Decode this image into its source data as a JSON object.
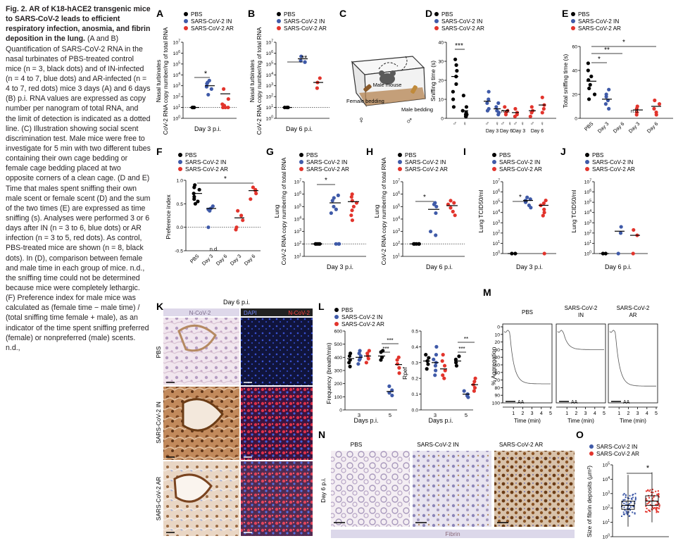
{
  "caption": {
    "title": "Fig. 2. AR of K18-hACE2 transgenic mice to SARS-CoV-2 leads to efficient respiratory infection, anosmia, and fibrin deposition in the lung.",
    "body": "(A and B) Quantification of SARS-CoV-2 RNA in the nasal turbinates of PBS-treated control mice (n = 3, black dots) and of IN-infected (n = 4 to 7, blue dots) and AR-infected (n = 4 to 7, red dots) mice 3 days (A) and 6 days (B) p.i. RNA values are expressed as copy number per nanogram of total RNA, and the limit of detection is indicated as a dotted line. (C) Illustration showing social scent discrimination test. Male mice were free to investigate for 5 min with two different tubes containing their own cage bedding or female cage bedding placed at two opposite corners of a clean cage. (D and E) Time that males spent sniffing their own male scent or female scent (D) and the sum of the two times (E) are expressed as time sniffing (s). Analyses were performed 3 or 6 days after IN (n = 3 to 6, blue dots) or AR infection (n = 3 to 5, red dots). As control, PBS-treated mice are shown (n = 8, black dots). In (D), comparison between female and male time in each group of mice. n.d., the sniffing time could not be determined because mice were completely lethargic. (F) Preference index for male mice was calculated as (female time − male time) / (total sniffing time female + male), as an indicator of the time spent sniffing preferred (female) or nonpreferred (male) scents. n.d.,"
  },
  "colors": {
    "pbs": "#000000",
    "in": "#3f5aa8",
    "ar": "#e2342c"
  },
  "legend3": [
    "PBS",
    "SARS-CoV-2 IN",
    "SARS-CoV-2 AR"
  ],
  "legend2": [
    "SARS-CoV-2 IN",
    "SARS-CoV-2 AR"
  ],
  "panels": {
    "A": {
      "letter": "A",
      "ylabel1": "Nasal turbinates",
      "ylabel2": "CoV-2 RNA copy number/ng of total RNA",
      "xlabel": "Day 3 p.i.",
      "sig": "*"
    },
    "B": {
      "letter": "B",
      "ylabel1": "Nasal turbinates",
      "ylabel2": "CoV-2 RNA copy number/ng of total RNA",
      "xlabel": "Day 6 p.i.",
      "sig": "**"
    },
    "C": {
      "letter": "C",
      "male_mouse": "Male mouse",
      "female_bedding": "Female bedding",
      "male_bedding": "Male bedding",
      "female_sym": "♀",
      "male_sym": "♂"
    },
    "D": {
      "letter": "D",
      "ylabel": "Sniffing time (s)",
      "nd": "n.d.",
      "sig": "***",
      "days": [
        "Day 3",
        "Day 6",
        "Day 3",
        "Day 6"
      ]
    },
    "E": {
      "letter": "E",
      "ylabel": "Total sniffing time (s)",
      "nd": "n.d.",
      "cats": [
        "PBS",
        "Day 3",
        "Day 6",
        "Day 3",
        "Day 6"
      ]
    },
    "F": {
      "letter": "F",
      "ylabel": "Preference index",
      "nd": "n.d.",
      "cats": [
        "PBS",
        "Day 3",
        "Day 6",
        "Day 3",
        "Day 6"
      ]
    },
    "G": {
      "letter": "G",
      "ylabel1": "Lung",
      "ylabel2": "CoV-2 RNA copy number/ng of total RNA",
      "xlabel": "Day 3 p.i."
    },
    "H": {
      "letter": "H",
      "ylabel1": "Lung",
      "ylabel2": "CoV-2 RNA copy number/ng of total RNA",
      "xlabel": "Day 6 p.i."
    },
    "I": {
      "letter": "I",
      "ylabel": "Lung TCID50/ml",
      "xlabel": "Day 3 p.i."
    },
    "J": {
      "letter": "J",
      "ylabel": "Lung TCID50/ml",
      "xlabel": "Day 6 p.i."
    },
    "K": {
      "letter": "K",
      "title": "Day 6 p.i.",
      "col1": "N-CoV-2",
      "col2a": "DAPI",
      "col2b": "N-CoV-2",
      "rows": [
        "PBS",
        "SARS-CoV-2 IN",
        "SARS-CoV-2 AR"
      ]
    },
    "L": {
      "letter": "L",
      "ylabel1": "Frequency (breath/min)",
      "ylabel2": "Rpef",
      "xlabel": "Days p.i.",
      "cats": [
        "3",
        "5"
      ]
    },
    "M": {
      "letter": "M",
      "ylabel": "% Aggregation",
      "xlabel": "Time (min)",
      "aa": "AA",
      "titles": [
        "PBS",
        "SARS-CoV-2 IN",
        "SARS-CoV-2 AR"
      ]
    },
    "N": {
      "letter": "N",
      "side": "Day 6 p.i.",
      "titles": [
        "PBS",
        "SARS-CoV-2 IN",
        "SARS-CoV-2 AR"
      ],
      "bottom": "Fibrin"
    },
    "O": {
      "letter": "O",
      "ylabel": "Size of fibrin deposits (µm²)",
      "sig": "*"
    }
  },
  "chart_data": [
    {
      "id": "A",
      "type": "scatter",
      "yscale": "log",
      "ylim": [
        1,
        10000000
      ],
      "groups": [
        {
          "name": "PBS",
          "values": [
            10,
            10,
            10
          ],
          "mean": 10
        },
        {
          "name": "SARS-CoV-2 IN",
          "values": [
            2000,
            800,
            500,
            3000,
            1500,
            150
          ],
          "mean": 1000
        },
        {
          "name": "SARS-CoV-2 AR",
          "values": [
            500,
            60,
            20,
            10,
            10,
            10,
            15
          ],
          "mean": 180
        }
      ]
    },
    {
      "id": "B",
      "type": "scatter",
      "yscale": "log",
      "ylim": [
        1,
        10000000
      ],
      "groups": [
        {
          "name": "PBS",
          "values": [
            10,
            10,
            10
          ],
          "mean": 10
        },
        {
          "name": "SARS-CoV-2 IN",
          "values": [
            500000,
            200000,
            150000,
            150000
          ],
          "mean": 300000
        },
        {
          "name": "SARS-CoV-2 AR",
          "values": [
            5000,
            2000,
            600
          ],
          "mean": 2000
        }
      ]
    },
    {
      "id": "D",
      "type": "scatter",
      "ylim": [
        0,
        40
      ],
      "groups": [
        {
          "name": "PBS female",
          "values": [
            31,
            28,
            25,
            22,
            18,
            14,
            10,
            6
          ],
          "mean": 22
        },
        {
          "name": "PBS male",
          "values": [
            12,
            6,
            4,
            3,
            2,
            2,
            1,
            1
          ],
          "mean": 4
        },
        {
          "name": "IN d3 female",
          "values": [
            14,
            10,
            8,
            5,
            4
          ],
          "mean": 9
        },
        {
          "name": "IN d3 male",
          "values": [
            8,
            6,
            4,
            3,
            2
          ],
          "mean": 5
        },
        {
          "name": "AR d3 female",
          "values": [
            6,
            4,
            3,
            2
          ],
          "mean": 4
        },
        {
          "name": "AR d3 male",
          "values": [
            5,
            3,
            2,
            1
          ],
          "mean": 3
        },
        {
          "name": "AR d6 female",
          "values": [
            6,
            4,
            3,
            1
          ],
          "mean": 4
        },
        {
          "name": "AR d6 male",
          "values": [
            11,
            7,
            5,
            3
          ],
          "mean": 7
        }
      ]
    },
    {
      "id": "E",
      "type": "scatter",
      "ylim": [
        0,
        60
      ],
      "groups": [
        {
          "name": "PBS",
          "values": [
            46,
            40,
            35,
            32,
            28,
            25,
            20,
            16
          ],
          "mean": 31
        },
        {
          "name": "IN d3",
          "values": [
            24,
            20,
            18,
            15,
            12,
            8
          ],
          "mean": 16
        },
        {
          "name": "AR d3",
          "values": [
            10,
            8,
            5,
            3
          ],
          "mean": 7
        },
        {
          "name": "AR d6",
          "values": [
            15,
            12,
            8,
            5,
            3
          ],
          "mean": 10
        }
      ]
    },
    {
      "id": "F",
      "type": "scatter",
      "ylim": [
        -0.5,
        1.0
      ],
      "groups": [
        {
          "name": "PBS",
          "values": [
            0.9,
            0.85,
            0.8,
            0.72,
            0.65,
            0.6,
            0.55,
            0.5
          ],
          "mean": 0.72
        },
        {
          "name": "IN d3",
          "values": [
            0.45,
            0.4,
            0.38,
            0.35,
            0.0
          ],
          "mean": 0.4
        },
        {
          "name": "AR d3",
          "values": [
            0.35,
            0.25,
            0.15,
            0.0,
            -0.05
          ],
          "mean": 0.2
        },
        {
          "name": "AR d6",
          "values": [
            0.85,
            0.8,
            0.78,
            0.72,
            0.6
          ],
          "mean": 0.78
        }
      ]
    },
    {
      "id": "G",
      "type": "scatter",
      "yscale": "log",
      "ylim": [
        10,
        10000000
      ],
      "groups": [
        {
          "name": "PBS",
          "values": [
            100,
            100,
            100,
            100,
            100
          ],
          "mean": 100
        },
        {
          "name": "SARS-CoV-2 IN",
          "values": [
            800000,
            500000,
            300000,
            100000,
            60000,
            30000,
            100,
            100,
            100
          ],
          "mean": 200000
        },
        {
          "name": "SARS-CoV-2 AR",
          "values": [
            1000000,
            600000,
            300000,
            200000,
            100000,
            50000,
            20000,
            8000
          ],
          "mean": 250000
        }
      ]
    },
    {
      "id": "H",
      "type": "scatter",
      "yscale": "log",
      "ylim": [
        10,
        10000000
      ],
      "groups": [
        {
          "name": "PBS",
          "values": [
            100,
            100,
            100,
            100,
            100
          ],
          "mean": 100
        },
        {
          "name": "SARS-CoV-2 IN",
          "values": [
            200000,
            150000,
            100000,
            30000,
            1000,
            500
          ],
          "mean": 60000
        },
        {
          "name": "SARS-CoV-2 AR",
          "values": [
            300000,
            200000,
            150000,
            80000,
            40000,
            20000
          ],
          "mean": 120000
        }
      ]
    },
    {
      "id": "I",
      "type": "scatter",
      "yscale": "log",
      "ylim": [
        1,
        10000000
      ],
      "groups": [
        {
          "name": "PBS",
          "values": [
            1,
            1
          ],
          "mean": 1
        },
        {
          "name": "SARS-CoV-2 IN",
          "values": [
            300000,
            200000,
            150000,
            100000,
            50000,
            30000
          ],
          "mean": 150000
        },
        {
          "name": "SARS-CoV-2 AR",
          "values": [
            150000,
            80000,
            50000,
            20000,
            10000,
            5000,
            1
          ],
          "mean": 50000
        }
      ]
    },
    {
      "id": "J",
      "type": "scatter",
      "yscale": "log",
      "ylim": [
        1,
        10000000
      ],
      "groups": [
        {
          "name": "PBS",
          "values": [
            1,
            1
          ],
          "mean": 1
        },
        {
          "name": "SARS-CoV-2 IN",
          "values": [
            400,
            100,
            1
          ],
          "mean": 150
        },
        {
          "name": "SARS-CoV-2 AR",
          "values": [
            200,
            60,
            1
          ],
          "mean": 60
        }
      ]
    },
    {
      "id": "L1",
      "type": "scatter",
      "ylim": [
        0,
        600
      ],
      "groups": [
        {
          "name": "PBS d3",
          "values": [
            430,
            410,
            380,
            360,
            330
          ],
          "mean": 390
        },
        {
          "name": "IN d3",
          "values": [
            450,
            430,
            410,
            390,
            380,
            350
          ],
          "mean": 400
        },
        {
          "name": "AR d3",
          "values": [
            450,
            430,
            410,
            390,
            360
          ],
          "mean": 410
        },
        {
          "name": "PBS d5",
          "values": [
            450,
            440,
            400,
            380
          ],
          "mean": 410
        },
        {
          "name": "IN d5",
          "values": [
            180,
            150,
            130,
            110
          ],
          "mean": 140
        },
        {
          "name": "AR d5",
          "values": [
            400,
            380,
            350,
            320,
            280
          ],
          "mean": 345
        }
      ]
    },
    {
      "id": "L2",
      "type": "scatter",
      "ylim": [
        0,
        0.5
      ],
      "groups": [
        {
          "name": "PBS d3",
          "values": [
            0.35,
            0.33,
            0.31,
            0.29,
            0.26
          ],
          "mean": 0.31
        },
        {
          "name": "IN d3",
          "values": [
            0.4,
            0.35,
            0.32,
            0.3,
            0.28,
            0.25,
            0.22
          ],
          "mean": 0.3
        },
        {
          "name": "AR d3",
          "values": [
            0.35,
            0.31,
            0.28,
            0.25,
            0.22,
            0.2
          ],
          "mean": 0.26
        },
        {
          "name": "PBS d5",
          "values": [
            0.34,
            0.32,
            0.3,
            0.28
          ],
          "mean": 0.31
        },
        {
          "name": "IN d5",
          "values": [
            0.12,
            0.1,
            0.09,
            0.08
          ],
          "mean": 0.1
        },
        {
          "name": "AR d5",
          "values": [
            0.2,
            0.18,
            0.16,
            0.14,
            0.12
          ],
          "mean": 0.16
        }
      ]
    },
    {
      "id": "M",
      "type": "line",
      "x_range": [
        0,
        5
      ],
      "ylim": [
        0,
        100
      ],
      "yticks": [
        0,
        10,
        20,
        30,
        40,
        50,
        60,
        70,
        80,
        90,
        100
      ],
      "xticks": [
        1,
        2,
        3,
        4,
        5
      ],
      "series": [
        {
          "name": "PBS",
          "final": 75
        },
        {
          "name": "SARS-CoV-2 IN",
          "final": 30
        },
        {
          "name": "SARS-CoV-2 AR",
          "final": 78
        }
      ]
    },
    {
      "id": "O",
      "type": "box",
      "yscale": "log",
      "ylim": [
        1,
        100000
      ],
      "yticks": [
        1,
        10,
        100,
        1000,
        10000,
        100000
      ],
      "groups": [
        {
          "name": "SARS-CoV-2 IN",
          "median": 150,
          "q1": 80,
          "q3": 300,
          "min": 5,
          "max": 20000
        },
        {
          "name": "SARS-CoV-2 AR",
          "median": 300,
          "q1": 150,
          "q3": 700,
          "min": 10,
          "max": 30000
        }
      ]
    }
  ]
}
